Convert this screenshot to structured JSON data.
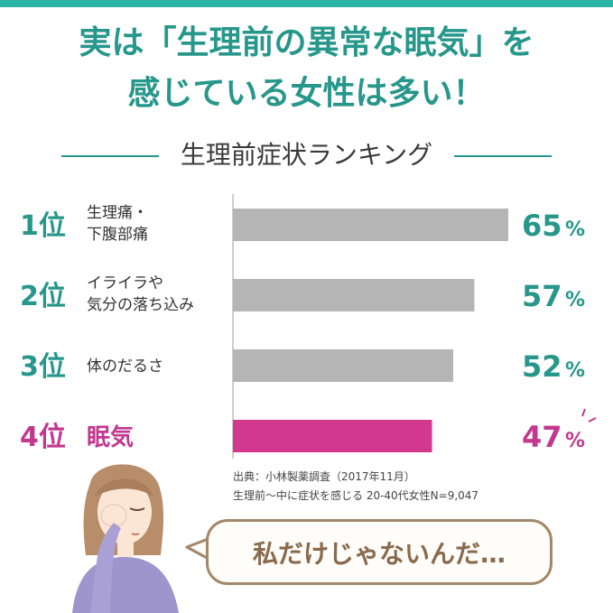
{
  "headline": {
    "line1": "実は「生理前の異常な眠気」を",
    "line2": "感じている女性は多い！"
  },
  "section_title": "生理前症状ランキング",
  "colors": {
    "teal": "#26978a",
    "accent": "#c2388f",
    "bar_default": "#b5b5b5",
    "bar_highlight": "#d2388e",
    "bubble_border": "#a2876a",
    "bubble_text": "#8a6a4c"
  },
  "chart_data": {
    "type": "bar",
    "orientation": "horizontal",
    "categories": [
      {
        "rank": "1位",
        "label_lines": [
          "生理痛・",
          "下腹部痛"
        ]
      },
      {
        "rank": "2位",
        "label_lines": [
          "イライラや",
          "気分の落ち込み"
        ]
      },
      {
        "rank": "3位",
        "label_lines": [
          "体のだるさ"
        ]
      },
      {
        "rank": "4位",
        "label_lines": [
          "眠気"
        ]
      }
    ],
    "values": [
      65,
      57,
      52,
      47
    ],
    "value_labels": [
      "65",
      "57",
      "52",
      "47"
    ],
    "unit": "%",
    "highlight_index": 3,
    "xlim": [
      0,
      65
    ]
  },
  "source": {
    "line1": "出典：小林製薬調査（2017年11月）",
    "line2": "生理前～中に症状を感じる 20-40代女性N=9,047"
  },
  "bubble_text": "私だけじゃないんだ…"
}
